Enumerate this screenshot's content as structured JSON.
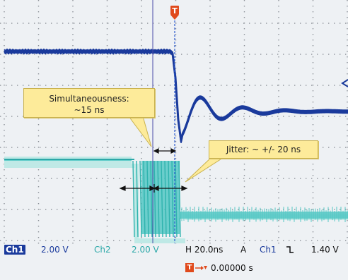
{
  "trigger_marker": "T",
  "annotations": {
    "simultaneousness": [
      "Simultaneousness:",
      "~15 ns"
    ],
    "jitter": "Jitter: ~ +/- 20 ns"
  },
  "status_bar": {
    "ch1_label": "Ch1",
    "ch1_scale": "2.00 V",
    "ch2_label": "Ch2",
    "ch2_scale": "2.00 V",
    "horizontal": "H 20.0ns",
    "acq_mode": "A",
    "trigger_source": "Ch1",
    "trigger_slope_icon": "falling-edge-icon",
    "trigger_level": "1.40 V",
    "trigger_position_label": "T",
    "trigger_offset": "0.00000 s"
  },
  "colors": {
    "ch1": "#1a3a9c",
    "ch2": "#54c8c4",
    "trigger": "#e04a1c",
    "callout_fill": "#fdeb9a"
  }
}
